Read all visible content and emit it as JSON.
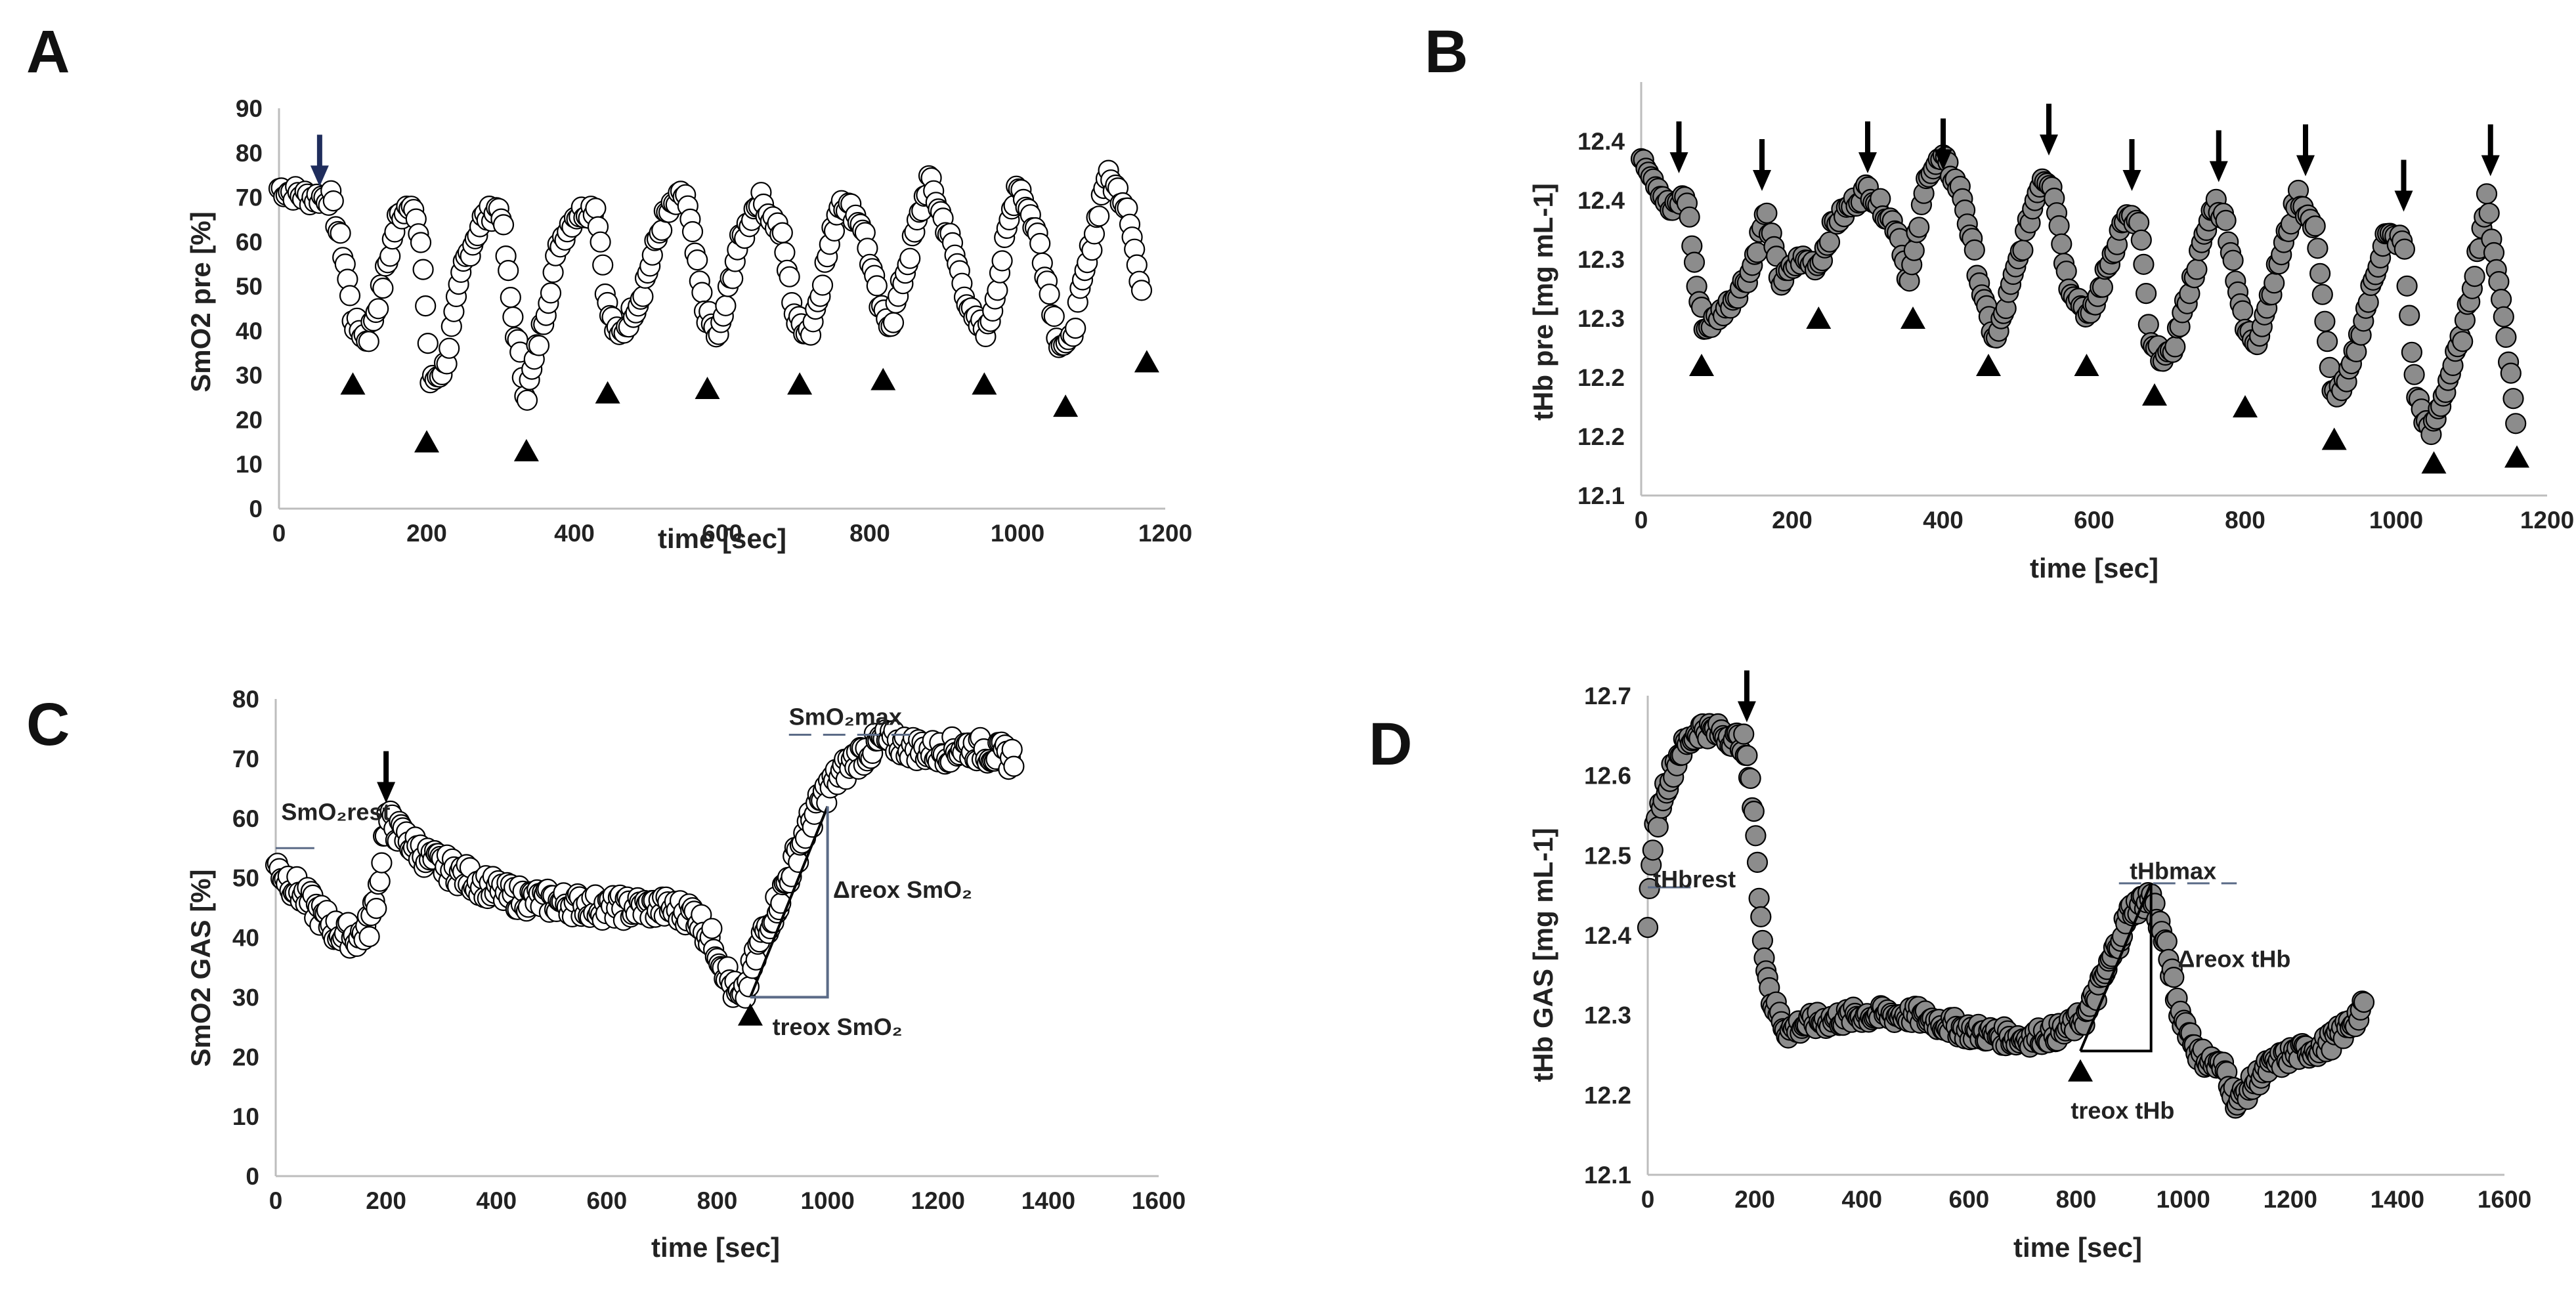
{
  "chart_data": [
    {
      "id": "A",
      "type": "scatter",
      "panel_label": "A",
      "marker": "open-circle",
      "xlabel": "time [sec]",
      "ylabel": "SmO2 pre [%]",
      "xlim": [
        0,
        1200
      ],
      "ylim": [
        0,
        90
      ],
      "xticks": [
        0,
        200,
        400,
        600,
        800,
        1000,
        1200
      ],
      "yticks": [
        0,
        10,
        20,
        30,
        40,
        50,
        60,
        70,
        80,
        90
      ],
      "series_points": [
        [
          0,
          72
        ],
        [
          40,
          70
        ],
        [
          70,
          70
        ],
        [
          90,
          55
        ],
        [
          100,
          42
        ],
        [
          120,
          38
        ],
        [
          140,
          50
        ],
        [
          160,
          65
        ],
        [
          180,
          70
        ],
        [
          195,
          55
        ],
        [
          205,
          28
        ],
        [
          225,
          32
        ],
        [
          250,
          55
        ],
        [
          275,
          65
        ],
        [
          300,
          68
        ],
        [
          315,
          45
        ],
        [
          335,
          25
        ],
        [
          355,
          40
        ],
        [
          380,
          60
        ],
        [
          400,
          66
        ],
        [
          430,
          68
        ],
        [
          445,
          45
        ],
        [
          460,
          38
        ],
        [
          490,
          48
        ],
        [
          520,
          65
        ],
        [
          550,
          71
        ],
        [
          575,
          45
        ],
        [
          595,
          38
        ],
        [
          620,
          58
        ],
        [
          650,
          70
        ],
        [
          680,
          62
        ],
        [
          700,
          42
        ],
        [
          720,
          40
        ],
        [
          760,
          70
        ],
        [
          790,
          64
        ],
        [
          815,
          44
        ],
        [
          830,
          42
        ],
        [
          880,
          74
        ],
        [
          910,
          60
        ],
        [
          940,
          42
        ],
        [
          960,
          40
        ],
        [
          1000,
          74
        ],
        [
          1030,
          60
        ],
        [
          1055,
          38
        ],
        [
          1070,
          36
        ],
        [
          1120,
          75
        ],
        [
          1150,
          68
        ],
        [
          1170,
          45
        ]
      ],
      "events": [
        {
          "type": "arrow",
          "x": 55,
          "y": 73,
          "color": "#1f2d5c"
        },
        {
          "type": "triangle",
          "x": 100,
          "y": 28
        },
        {
          "type": "triangle",
          "x": 200,
          "y": 15
        },
        {
          "type": "triangle",
          "x": 335,
          "y": 13
        },
        {
          "type": "triangle",
          "x": 445,
          "y": 26
        },
        {
          "type": "triangle",
          "x": 580,
          "y": 27
        },
        {
          "type": "triangle",
          "x": 705,
          "y": 28
        },
        {
          "type": "triangle",
          "x": 818,
          "y": 29
        },
        {
          "type": "triangle",
          "x": 955,
          "y": 28
        },
        {
          "type": "triangle",
          "x": 1065,
          "y": 23
        },
        {
          "type": "triangle",
          "x": 1175,
          "y": 33
        }
      ],
      "annotations": []
    },
    {
      "id": "B",
      "type": "scatter",
      "panel_label": "B",
      "marker": "filled-gray-circle",
      "xlabel": "time [sec]",
      "ylabel": "tHb pre [mg mL-1]",
      "ylim_axis": [
        0,
        7
      ],
      "xlim": [
        0,
        1200
      ],
      "xticks": [
        0,
        200,
        400,
        600,
        800,
        1000,
        1200
      ],
      "ytick_labels": [
        "12.1",
        "12.2",
        "12.2",
        "12.3",
        "12.3",
        "12.4",
        "12.4"
      ],
      "series_points": [
        [
          0,
          5.8
        ],
        [
          20,
          5.3
        ],
        [
          40,
          4.8
        ],
        [
          60,
          5.1
        ],
        [
          75,
          3.4
        ],
        [
          85,
          2.8
        ],
        [
          120,
          3.3
        ],
        [
          145,
          3.8
        ],
        [
          165,
          4.8
        ],
        [
          185,
          3.6
        ],
        [
          210,
          4.0
        ],
        [
          235,
          3.9
        ],
        [
          255,
          4.6
        ],
        [
          300,
          5.2
        ],
        [
          340,
          4.5
        ],
        [
          355,
          3.6
        ],
        [
          380,
          5.5
        ],
        [
          400,
          5.7
        ],
        [
          425,
          5.1
        ],
        [
          455,
          3.2
        ],
        [
          470,
          2.6
        ],
        [
          500,
          4.0
        ],
        [
          530,
          5.4
        ],
        [
          545,
          5.3
        ],
        [
          565,
          3.6
        ],
        [
          595,
          3.0
        ],
        [
          640,
          4.7
        ],
        [
          660,
          4.6
        ],
        [
          675,
          2.5
        ],
        [
          700,
          2.3
        ],
        [
          760,
          5.0
        ],
        [
          775,
          4.6
        ],
        [
          800,
          2.8
        ],
        [
          815,
          2.6
        ],
        [
          870,
          5.1
        ],
        [
          895,
          4.4
        ],
        [
          915,
          1.7
        ],
        [
          935,
          1.9
        ],
        [
          985,
          4.4
        ],
        [
          1010,
          4.3
        ],
        [
          1025,
          1.8
        ],
        [
          1045,
          1.0
        ],
        [
          1090,
          2.8
        ],
        [
          1120,
          5.0
        ],
        [
          1145,
          2.8
        ],
        [
          1160,
          1.1
        ]
      ],
      "events": [
        {
          "type": "arrow",
          "x": 50,
          "y": 5.5
        },
        {
          "type": "arrow",
          "x": 160,
          "y": 5.2
        },
        {
          "type": "arrow",
          "x": 300,
          "y": 5.5
        },
        {
          "type": "arrow",
          "x": 400,
          "y": 5.55
        },
        {
          "type": "arrow",
          "x": 540,
          "y": 5.8
        },
        {
          "type": "arrow",
          "x": 650,
          "y": 5.2
        },
        {
          "type": "arrow",
          "x": 765,
          "y": 5.35
        },
        {
          "type": "arrow",
          "x": 880,
          "y": 5.45
        },
        {
          "type": "arrow",
          "x": 1010,
          "y": 4.85
        },
        {
          "type": "arrow",
          "x": 1125,
          "y": 5.45
        },
        {
          "type": "triangle",
          "x": 80,
          "y": 2.2
        },
        {
          "type": "triangle",
          "x": 235,
          "y": 3.0
        },
        {
          "type": "triangle",
          "x": 360,
          "y": 3.0
        },
        {
          "type": "triangle",
          "x": 460,
          "y": 2.2
        },
        {
          "type": "triangle",
          "x": 590,
          "y": 2.2
        },
        {
          "type": "triangle",
          "x": 680,
          "y": 1.7
        },
        {
          "type": "triangle",
          "x": 800,
          "y": 1.5
        },
        {
          "type": "triangle",
          "x": 918,
          "y": 0.95
        },
        {
          "type": "triangle",
          "x": 1050,
          "y": 0.55
        },
        {
          "type": "triangle",
          "x": 1160,
          "y": 0.65
        }
      ],
      "annotations": []
    },
    {
      "id": "C",
      "type": "scatter",
      "panel_label": "C",
      "marker": "open-circle",
      "xlabel": "time [sec]",
      "ylabel": "SmO2 GAS [%]",
      "xlim": [
        0,
        1600
      ],
      "ylim": [
        0,
        80
      ],
      "xticks": [
        0,
        200,
        400,
        600,
        800,
        1000,
        1200,
        1400,
        1600
      ],
      "yticks": [
        0,
        10,
        20,
        30,
        40,
        50,
        60,
        70,
        80
      ],
      "series_points": [
        [
          0,
          52
        ],
        [
          40,
          48
        ],
        [
          80,
          44
        ],
        [
          110,
          41
        ],
        [
          150,
          40
        ],
        [
          170,
          42
        ],
        [
          185,
          48
        ],
        [
          200,
          60
        ],
        [
          230,
          57
        ],
        [
          280,
          53
        ],
        [
          350,
          50
        ],
        [
          420,
          47
        ],
        [
          500,
          46
        ],
        [
          600,
          45
        ],
        [
          700,
          45
        ],
        [
          760,
          44
        ],
        [
          800,
          38
        ],
        [
          830,
          31
        ],
        [
          845,
          29
        ],
        [
          880,
          40
        ],
        [
          920,
          48
        ],
        [
          960,
          58
        ],
        [
          1000,
          65
        ],
        [
          1050,
          70
        ],
        [
          1100,
          73
        ],
        [
          1150,
          72
        ],
        [
          1200,
          71
        ],
        [
          1250,
          72
        ],
        [
          1300,
          71
        ],
        [
          1340,
          70
        ]
      ],
      "events": [
        {
          "type": "arrow",
          "x": 200,
          "y": 63
        },
        {
          "type": "triangle",
          "x": 860,
          "y": 27
        }
      ],
      "annotations": [
        {
          "label": "SmO₂rest",
          "x": 10,
          "y": 61
        },
        {
          "label": "SmO₂max",
          "x": 930,
          "y": 77
        },
        {
          "label": "Δreox SmO₂",
          "x": 1010,
          "y": 48
        },
        {
          "label": "treox SmO₂",
          "x": 900,
          "y": 25
        }
      ]
    },
    {
      "id": "D",
      "type": "scatter",
      "panel_label": "D",
      "marker": "filled-gray-circle",
      "xlabel": "time [sec]",
      "ylabel": "tHb GAS [mg mL-1]",
      "xlim": [
        0,
        1600
      ],
      "ylim": [
        12.1,
        12.7
      ],
      "xticks": [
        0,
        200,
        400,
        600,
        800,
        1000,
        1200,
        1400,
        1600
      ],
      "yticks": [
        12.1,
        12.2,
        12.3,
        12.4,
        12.5,
        12.6,
        12.7
      ],
      "ytick_labels": [
        "12.1",
        "12.2",
        "12.3",
        "12.4",
        "12.5",
        "12.6",
        "12.7"
      ],
      "series_points": [
        [
          0,
          12.42
        ],
        [
          10,
          12.52
        ],
        [
          30,
          12.58
        ],
        [
          60,
          12.63
        ],
        [
          100,
          12.66
        ],
        [
          150,
          12.65
        ],
        [
          180,
          12.64
        ],
        [
          200,
          12.55
        ],
        [
          210,
          12.42
        ],
        [
          230,
          12.32
        ],
        [
          260,
          12.28
        ],
        [
          300,
          12.29
        ],
        [
          400,
          12.3
        ],
        [
          500,
          12.3
        ],
        [
          600,
          12.28
        ],
        [
          700,
          12.27
        ],
        [
          780,
          12.28
        ],
        [
          820,
          12.3
        ],
        [
          860,
          12.36
        ],
        [
          900,
          12.43
        ],
        [
          940,
          12.45
        ],
        [
          970,
          12.38
        ],
        [
          990,
          12.31
        ],
        [
          1030,
          12.25
        ],
        [
          1080,
          12.23
        ],
        [
          1100,
          12.19
        ],
        [
          1150,
          12.23
        ],
        [
          1200,
          12.25
        ],
        [
          1260,
          12.26
        ],
        [
          1300,
          12.28
        ],
        [
          1340,
          12.31
        ]
      ],
      "events": [
        {
          "type": "arrow",
          "x": 185,
          "y": 12.67
        },
        {
          "type": "triangle",
          "x": 808,
          "y": 12.23
        }
      ],
      "annotations": [
        {
          "label": "tHbrest",
          "x": 10,
          "y": 12.47
        },
        {
          "label": "tHbmax",
          "x": 900,
          "y": 12.48
        },
        {
          "label": "Δreox tHb",
          "x": 990,
          "y": 12.37
        },
        {
          "label": "treox tHb",
          "x": 790,
          "y": 12.18
        }
      ]
    }
  ]
}
